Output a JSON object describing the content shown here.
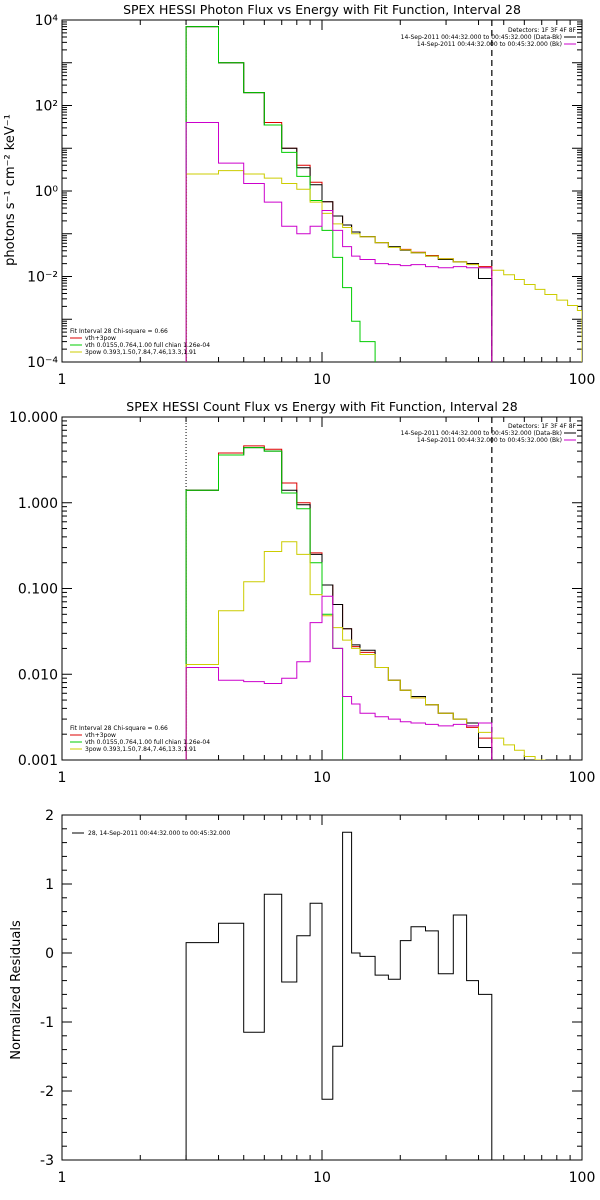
{
  "chart_data": [
    {
      "type": "line",
      "title": "SPEX HESSI Photon Flux vs Energy with Fit Function, Interval 28",
      "ylabel": "photons s⁻¹ cm⁻² keV⁻¹",
      "xlim": [
        1,
        100
      ],
      "ylim": [
        0.0001,
        10000
      ],
      "xscale": "log",
      "yscale": "log",
      "xticks": [
        "1",
        "10",
        "100"
      ],
      "yticks": [
        "10⁴",
        "10²",
        "10⁰",
        "10⁻²",
        "10⁻⁴"
      ],
      "legend_top": {
        "detectors": "Detectors: 1F 3F 4F 8F",
        "entries": [
          {
            "text": "14-Sep-2011 00:44:32.000 to 00:45:32.000 (Data-Bk)",
            "color": "#000000"
          },
          {
            "text": "14-Sep-2011 00:44:32.000 to 00:45:32.000 (Bk)",
            "color": "#cc00cc"
          }
        ]
      },
      "legend_bottom": {
        "header": "Fit Interval 28   Chi-square = 0.66",
        "entries": [
          {
            "text": "vth+3pow",
            "color": "#dd0000"
          },
          {
            "text": "vth 0.0155,0.764,1.00  full chian 1.26e-04",
            "color": "#00cc00"
          },
          {
            "text": "3pow 0.393,1.50,7.84,7.46,13.3,1.91",
            "color": "#cccc00"
          }
        ]
      },
      "vlines": [
        3.0,
        45.0
      ],
      "series": [
        {
          "name": "vth+3pow",
          "color": "#dd0000",
          "edges": [
            3.0,
            4.0,
            5.0,
            6.0,
            7.0,
            8.0,
            9.0,
            10.0,
            11.0,
            12.0,
            13.0,
            14.0,
            16.0,
            18.0,
            20.0,
            22.0,
            25.0,
            28.0,
            32.0,
            36.0,
            40.0,
            45.0
          ],
          "values": [
            7000,
            1000,
            200,
            40,
            10,
            4.0,
            1.6,
            0.56,
            0.26,
            0.16,
            0.11,
            0.086,
            0.062,
            0.049,
            0.043,
            0.037,
            0.031,
            0.026,
            0.022,
            0.02,
            0.017
          ]
        },
        {
          "name": "",
          "color": "#000000",
          "edges": [
            3.0,
            4.0,
            5.0,
            6.0,
            7.0,
            8.0,
            9.0,
            10.0,
            11.0,
            12.0,
            13.0,
            14.0,
            16.0,
            18.0,
            20.0,
            22.0,
            25.0,
            28.0,
            32.0,
            36.0,
            40.0,
            45.0
          ],
          "values": [
            7000,
            1000,
            200,
            35,
            10,
            3.5,
            1.4,
            0.56,
            0.26,
            0.16,
            0.11,
            0.086,
            0.062,
            0.05,
            0.041,
            0.036,
            0.03,
            0.025,
            0.022,
            0.02,
            0.009
          ]
        },
        {
          "name": "vth",
          "color": "#00cc00",
          "edges": [
            3.0,
            4.0,
            5.0,
            6.0,
            7.0,
            8.0,
            9.0,
            10.0,
            11.0,
            12.0,
            13.0,
            14.0,
            16.0
          ],
          "values": [
            7000,
            1000,
            200,
            35,
            8,
            2.2,
            0.6,
            0.12,
            0.028,
            0.0055,
            0.0009,
            0.0003
          ]
        },
        {
          "name": "3pow",
          "color": "#cccc00",
          "edges": [
            3.0,
            4.0,
            5.0,
            6.0,
            7.0,
            8.0,
            9.0,
            10.0,
            11.0,
            12.0,
            13.0,
            14.0,
            16.0,
            18.0,
            20.0,
            22.0,
            25.0,
            28.0,
            32.0,
            36.0,
            40.0,
            45.0,
            50.0,
            55.0,
            60.0,
            66.0,
            72.0,
            80.0,
            88.0,
            96.0,
            100.0
          ],
          "values": [
            2.5,
            3.0,
            2.5,
            2.0,
            1.5,
            1.1,
            0.55,
            0.3,
            0.17,
            0.14,
            0.1,
            0.085,
            0.062,
            0.048,
            0.042,
            0.036,
            0.03,
            0.026,
            0.022,
            0.019,
            0.016,
            0.014,
            0.011,
            0.0085,
            0.0065,
            0.005,
            0.0038,
            0.0028,
            0.0021,
            0.0016
          ]
        },
        {
          "name": "Bk",
          "color": "#cc00cc",
          "edges": [
            3.0,
            4.0,
            5.0,
            6.0,
            7.0,
            8.0,
            9.0,
            10.0,
            11.0,
            12.0,
            13.0,
            14.0,
            16.0,
            18.0,
            20.0,
            22.0,
            25.0,
            28.0,
            32.0,
            36.0,
            40.0,
            45.0
          ],
          "values": [
            40,
            4.5,
            1.5,
            0.55,
            0.15,
            0.1,
            0.15,
            0.35,
            0.12,
            0.05,
            0.03,
            0.025,
            0.02,
            0.019,
            0.018,
            0.019,
            0.017,
            0.016,
            0.017,
            0.016,
            0.016
          ]
        }
      ]
    },
    {
      "type": "line",
      "title": "SPEX HESSI Count Flux vs Energy with Fit Function, Interval 28",
      "xlim": [
        1,
        100
      ],
      "ylim": [
        0.001,
        10
      ],
      "xscale": "log",
      "yscale": "log",
      "xticks": [
        "1",
        "10",
        "100"
      ],
      "yticks": [
        "10.000",
        "1.000",
        "0.100",
        "0.010",
        "0.001"
      ],
      "legend_top": {
        "detectors": "Detectors: 1F 3F 4F 8F",
        "entries": [
          {
            "text": "14-Sep-2011 00:44:32.000 to 00:45:32.000 (Data-Bk)",
            "color": "#000000"
          },
          {
            "text": "14-Sep-2011 00:44:32.000 to 00:45:32.000 (Bk)",
            "color": "#cc00cc"
          }
        ]
      },
      "legend_bottom": {
        "header": "Fit Interval 28   Chi-square = 0.66",
        "entries": [
          {
            "text": "vth+3pow",
            "color": "#dd0000"
          },
          {
            "text": "vth 0.0155,0.764,1.00  full chian 1.26e-04",
            "color": "#00cc00"
          },
          {
            "text": "3pow 0.393,1.50,7.84,7.46,13.3,1.91",
            "color": "#cccc00"
          }
        ]
      },
      "vlines": [
        3.0,
        45.0
      ],
      "series": [
        {
          "name": "vth+3pow",
          "color": "#dd0000",
          "edges": [
            3.0,
            4.0,
            5.0,
            6.0,
            7.0,
            8.0,
            9.0,
            10.0,
            11.0,
            12.0,
            13.0,
            14.0,
            16.0,
            18.0,
            20.0,
            22.0,
            25.0,
            28.0,
            32.0,
            36.0,
            40.0,
            45.0
          ],
          "values": [
            1.4,
            3.8,
            4.6,
            4.2,
            1.7,
            1.0,
            0.26,
            0.11,
            0.065,
            0.034,
            0.021,
            0.018,
            0.012,
            0.0085,
            0.0065,
            0.0053,
            0.0044,
            0.0035,
            0.003,
            0.0024,
            0.0018
          ]
        },
        {
          "name": "",
          "color": "#000000",
          "edges": [
            3.0,
            4.0,
            5.0,
            6.0,
            7.0,
            8.0,
            9.0,
            10.0,
            11.0,
            12.0,
            13.0,
            14.0,
            16.0,
            18.0,
            20.0,
            22.0,
            25.0,
            28.0,
            32.0,
            36.0,
            40.0,
            45.0
          ],
          "values": [
            1.4,
            3.6,
            4.4,
            4.0,
            1.4,
            0.95,
            0.25,
            0.11,
            0.065,
            0.034,
            0.022,
            0.019,
            0.012,
            0.0085,
            0.0065,
            0.0055,
            0.0044,
            0.0035,
            0.003,
            0.0027,
            0.0014
          ]
        },
        {
          "name": "vth",
          "color": "#00cc00",
          "edges": [
            3.0,
            4.0,
            5.0,
            6.0,
            7.0,
            8.0,
            9.0,
            10.0,
            11.0,
            12.0
          ],
          "values": [
            1.4,
            3.6,
            4.4,
            4.0,
            1.3,
            0.85,
            0.2,
            0.05,
            0.02
          ]
        },
        {
          "name": "3pow",
          "color": "#cccc00",
          "edges": [
            3.0,
            4.0,
            5.0,
            6.0,
            7.0,
            8.0,
            9.0,
            10.0,
            11.0,
            12.0,
            13.0,
            14.0,
            16.0,
            18.0,
            20.0,
            22.0,
            25.0,
            28.0,
            32.0,
            36.0,
            40.0,
            45.0,
            50.0,
            55.0,
            60.0,
            66.0,
            72.0,
            80.0
          ],
          "values": [
            0.013,
            0.055,
            0.12,
            0.27,
            0.35,
            0.25,
            0.085,
            0.048,
            0.035,
            0.025,
            0.02,
            0.017,
            0.012,
            0.0085,
            0.0065,
            0.0053,
            0.0044,
            0.0035,
            0.003,
            0.0025,
            0.0021,
            0.0018,
            0.0015,
            0.0013,
            0.0011,
            0.001,
            0.0009
          ]
        },
        {
          "name": "Bk",
          "color": "#cc00cc",
          "edges": [
            3.0,
            4.0,
            5.0,
            6.0,
            7.0,
            8.0,
            9.0,
            10.0,
            11.0,
            12.0,
            13.0,
            14.0,
            16.0,
            18.0,
            20.0,
            22.0,
            25.0,
            28.0,
            32.0,
            36.0,
            40.0,
            45.0
          ],
          "values": [
            0.012,
            0.0085,
            0.0082,
            0.0078,
            0.009,
            0.014,
            0.04,
            0.081,
            0.02,
            0.0055,
            0.0045,
            0.0035,
            0.0032,
            0.003,
            0.0028,
            0.0027,
            0.0026,
            0.0025,
            0.0026,
            0.0025,
            0.0027
          ]
        }
      ]
    },
    {
      "type": "line",
      "title": "",
      "ylabel": "Normalized Residuals",
      "xlim": [
        1,
        100
      ],
      "ylim": [
        -3,
        2
      ],
      "xscale": "log",
      "yscale": "linear",
      "xticks": [
        "1",
        "10",
        "100"
      ],
      "yticks": [
        "2",
        "1",
        "0",
        "-1",
        "-2",
        "-3"
      ],
      "legend": "28, 14-Sep-2011 00:44:32.000 to 00:45:32.000",
      "series": [
        {
          "name": "",
          "color": "#000000",
          "edges": [
            3.0,
            4.0,
            5.0,
            6.0,
            7.0,
            8.0,
            9.0,
            10.0,
            11.0,
            12.0,
            13.0,
            14.0,
            16.0,
            18.0,
            20.0,
            22.0,
            25.0,
            28.0,
            32.0,
            36.0,
            40.0,
            45.0
          ],
          "values": [
            0.15,
            0.43,
            -1.15,
            0.85,
            -0.42,
            0.25,
            0.72,
            -2.12,
            -1.35,
            1.75,
            0.0,
            -0.05,
            -0.32,
            -0.38,
            0.18,
            0.38,
            0.32,
            -0.3,
            0.55,
            -0.4,
            -0.6
          ]
        }
      ]
    }
  ]
}
